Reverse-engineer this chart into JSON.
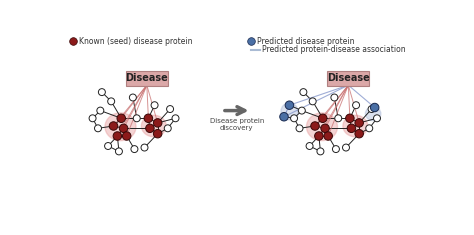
{
  "bg_color": "#ffffff",
  "legend_known_color": "#8B1A1A",
  "legend_predicted_color": "#4a6fa5",
  "legend_assoc_color": "#aabbd4",
  "disease_box_facecolor": "#dba8a8",
  "disease_box_edgecolor": "#b08080",
  "disease_text": "Disease",
  "arrow_label": "Disease protein\ndiscovery",
  "legend_known_label": "Known (seed) disease protein",
  "legend_predicted_label": "Predicted disease protein",
  "legend_assoc_label": "Predicted protein-disease association",
  "node_outline": "#222222",
  "edge_color": "#222222",
  "red_edge_color": "#c87070",
  "blue_edge_color": "#8899cc",
  "known_fill": "#8B1A1A",
  "white_fill": "#ffffff",
  "predicted_fill": "#4a6fa5",
  "cluster_pink": "#e8a0a0",
  "cluster_blue": "#99aad0"
}
